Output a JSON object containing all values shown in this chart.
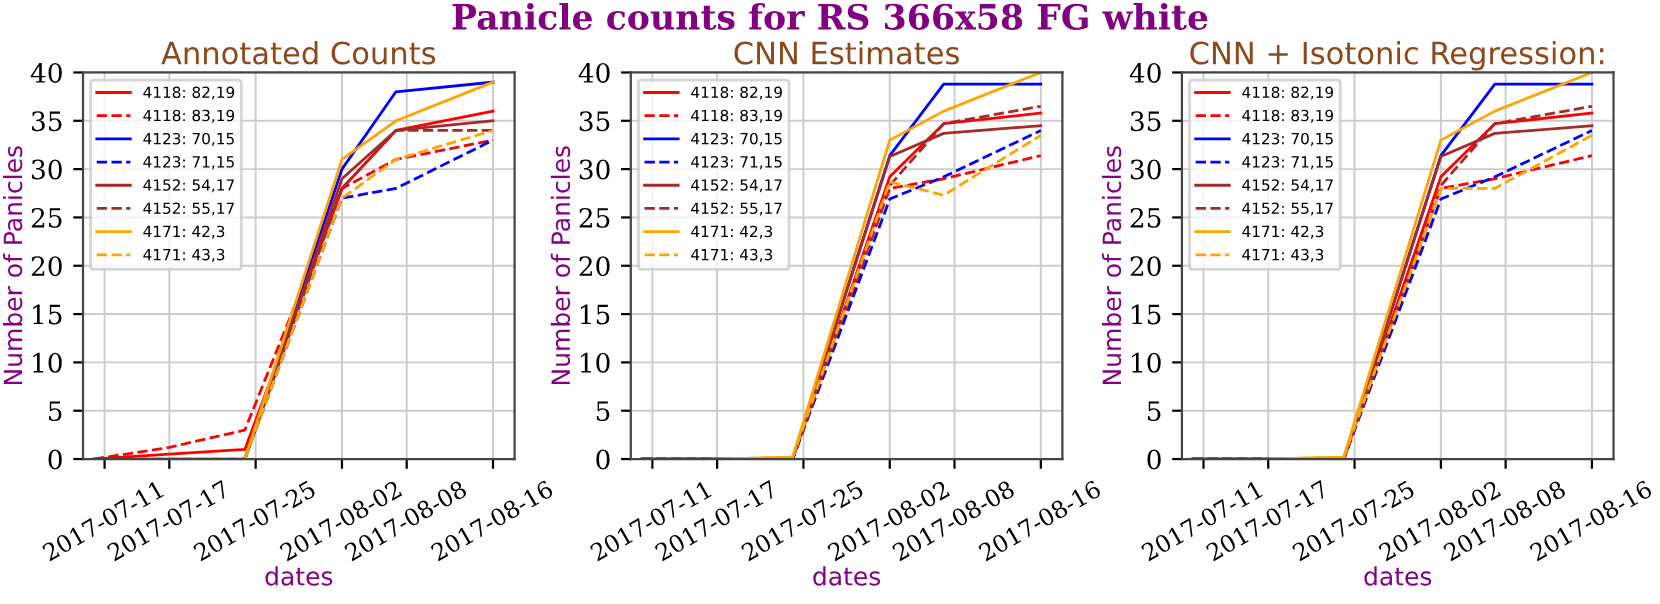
{
  "chart_data": [
    {
      "type": "line",
      "title": "Annotated Counts",
      "annotations": [
        "Panicle counts for RS 366x58 FG white"
      ],
      "xlabel": "dates",
      "ylabel": "Number of Panicles",
      "x": [
        "2017-07-10",
        "2017-07-17",
        "2017-07-24",
        "2017-08-02",
        "2017-08-07",
        "2017-08-16"
      ],
      "xlim": [
        "2017-07-09",
        "2017-08-18"
      ],
      "xticks": [
        "2017-07-11",
        "2017-07-17",
        "2017-07-25",
        "2017-08-02",
        "2017-08-08",
        "2017-08-16"
      ],
      "ylim": [
        0,
        40
      ],
      "yticks": [
        0,
        5,
        10,
        15,
        20,
        25,
        30,
        35,
        40
      ],
      "grid": true,
      "legend": "top left",
      "marker": "none",
      "series": [
        {
          "name": "4118: 82,19",
          "color": "#ff0000",
          "line_style": "solid",
          "values": [
            0,
            0.5,
            1,
            28,
            34,
            36
          ]
        },
        {
          "name": "4118: 83,19",
          "color": "#ff0000",
          "line_style": "dashed",
          "values": [
            0,
            1.2,
            3,
            28,
            31,
            33
          ]
        },
        {
          "name": "4123: 70,15",
          "color": "#0000ff",
          "line_style": "solid",
          "values": [
            null,
            null,
            0,
            30,
            38,
            39
          ]
        },
        {
          "name": "4123: 71,15",
          "color": "#0000ff",
          "line_style": "dashed",
          "values": [
            null,
            null,
            0,
            27,
            28,
            33
          ]
        },
        {
          "name": "4152: 54,17",
          "color": "#a52a2a",
          "line_style": "solid",
          "values": [
            0,
            0,
            0,
            29,
            34,
            35
          ]
        },
        {
          "name": "4152: 55,17",
          "color": "#a52a2a",
          "line_style": "dashed",
          "values": [
            0,
            0,
            0,
            28,
            34,
            34
          ]
        },
        {
          "name": "4171: 42,3",
          "color": "#ffa500",
          "line_style": "solid",
          "values": [
            null,
            0,
            0,
            31,
            35,
            39
          ]
        },
        {
          "name": "4171: 43,3",
          "color": "#ffa500",
          "line_style": "dashed",
          "values": [
            null,
            null,
            0,
            27,
            31,
            34
          ]
        }
      ]
    },
    {
      "type": "line",
      "title": "CNN Estimates",
      "xlabel": "dates",
      "ylabel": "Number of Panicles",
      "x": [
        "2017-07-10",
        "2017-07-17",
        "2017-07-24",
        "2017-08-02",
        "2017-08-07",
        "2017-08-16"
      ],
      "xlim": [
        "2017-07-09",
        "2017-08-18"
      ],
      "xticks": [
        "2017-07-11",
        "2017-07-17",
        "2017-07-25",
        "2017-08-02",
        "2017-08-08",
        "2017-08-16"
      ],
      "ylim": [
        0,
        40
      ],
      "yticks": [
        0,
        5,
        10,
        15,
        20,
        25,
        30,
        35,
        40
      ],
      "grid": true,
      "legend": "top left",
      "marker": "none",
      "series": [
        {
          "name": "4118: 82,19",
          "color": "#ff0000",
          "line_style": "solid",
          "values": [
            0,
            0,
            0,
            29.2,
            34.7,
            35.8
          ]
        },
        {
          "name": "4118: 83,19",
          "color": "#ff0000",
          "line_style": "dashed",
          "values": [
            0,
            0,
            0,
            28,
            29,
            31.4
          ]
        },
        {
          "name": "4123: 70,15",
          "color": "#0000ff",
          "line_style": "solid",
          "values": [
            0,
            0,
            0,
            31.4,
            38.8,
            38.8
          ]
        },
        {
          "name": "4123: 71,15",
          "color": "#0000ff",
          "line_style": "dashed",
          "values": [
            0,
            0,
            0,
            26.9,
            29.2,
            34
          ]
        },
        {
          "name": "4152: 54,17",
          "color": "#a52a2a",
          "line_style": "solid",
          "values": [
            0,
            0,
            0,
            31.3,
            33.7,
            34.5
          ]
        },
        {
          "name": "4152: 55,17",
          "color": "#a52a2a",
          "line_style": "dashed",
          "values": [
            0,
            0,
            0,
            28.3,
            34.7,
            36.5
          ]
        },
        {
          "name": "4171: 42,3",
          "color": "#ffa500",
          "line_style": "solid",
          "values": [
            null,
            0,
            0.2,
            33,
            36,
            40
          ]
        },
        {
          "name": "4171: 43,3",
          "color": "#ffa500",
          "line_style": "dashed",
          "values": [
            null,
            0,
            0.2,
            28.7,
            27.3,
            33.5
          ]
        }
      ]
    },
    {
      "type": "line",
      "title": "CNN + Isotonic Regression:",
      "xlabel": "dates",
      "ylabel": "Number of Panicles",
      "x": [
        "2017-07-10",
        "2017-07-17",
        "2017-07-24",
        "2017-08-02",
        "2017-08-07",
        "2017-08-16"
      ],
      "xlim": [
        "2017-07-09",
        "2017-08-18"
      ],
      "xticks": [
        "2017-07-11",
        "2017-07-17",
        "2017-07-25",
        "2017-08-02",
        "2017-08-08",
        "2017-08-16"
      ],
      "ylim": [
        0,
        40
      ],
      "yticks": [
        0,
        5,
        10,
        15,
        20,
        25,
        30,
        35,
        40
      ],
      "grid": true,
      "legend": "top left",
      "marker": "none",
      "series": [
        {
          "name": "4118: 82,19",
          "color": "#ff0000",
          "line_style": "solid",
          "values": [
            0,
            0,
            0,
            29.2,
            34.7,
            35.8
          ]
        },
        {
          "name": "4118: 83,19",
          "color": "#ff0000",
          "line_style": "dashed",
          "values": [
            0,
            0,
            0,
            28,
            29,
            31.4
          ]
        },
        {
          "name": "4123: 70,15",
          "color": "#0000ff",
          "line_style": "solid",
          "values": [
            0,
            0,
            0,
            31.4,
            38.8,
            38.8
          ]
        },
        {
          "name": "4123: 71,15",
          "color": "#0000ff",
          "line_style": "dashed",
          "values": [
            0,
            0,
            0,
            26.9,
            29.2,
            34
          ]
        },
        {
          "name": "4152: 54,17",
          "color": "#a52a2a",
          "line_style": "solid",
          "values": [
            0,
            0,
            0,
            31.3,
            33.7,
            34.5
          ]
        },
        {
          "name": "4152: 55,17",
          "color": "#a52a2a",
          "line_style": "dashed",
          "values": [
            0,
            0,
            0,
            28.3,
            34.7,
            36.5
          ]
        },
        {
          "name": "4171: 42,3",
          "color": "#ffa500",
          "line_style": "solid",
          "values": [
            null,
            0,
            0.2,
            33,
            36,
            40
          ]
        },
        {
          "name": "4171: 43,3",
          "color": "#ffa500",
          "line_style": "dashed",
          "values": [
            null,
            0,
            0.2,
            28,
            28,
            33.5
          ]
        }
      ]
    }
  ]
}
